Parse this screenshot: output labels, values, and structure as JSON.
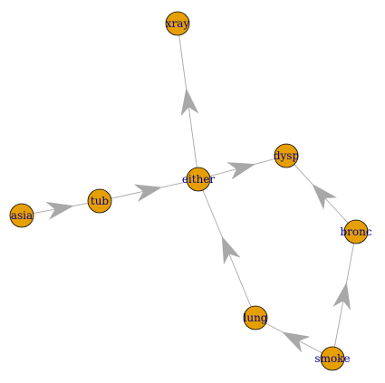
{
  "graph": {
    "colors": {
      "node_fill": "#E69F00",
      "node_border": "#000000",
      "edge": "#A8A8A8",
      "label": "#00008B"
    },
    "nodes": [
      {
        "id": "xray",
        "label": "xray"
      },
      {
        "id": "dysp",
        "label": "dysp"
      },
      {
        "id": "either",
        "label": "either"
      },
      {
        "id": "tub",
        "label": "tub"
      },
      {
        "id": "asia",
        "label": "asia"
      },
      {
        "id": "bronc",
        "label": "bronc"
      },
      {
        "id": "lung",
        "label": "lung"
      },
      {
        "id": "smoke",
        "label": "smoke"
      }
    ],
    "edges": [
      {
        "from": "asia",
        "to": "tub"
      },
      {
        "from": "tub",
        "to": "either"
      },
      {
        "from": "lung",
        "to": "either"
      },
      {
        "from": "either",
        "to": "xray"
      },
      {
        "from": "either",
        "to": "dysp"
      },
      {
        "from": "bronc",
        "to": "dysp"
      },
      {
        "from": "smoke",
        "to": "lung"
      },
      {
        "from": "smoke",
        "to": "bronc"
      }
    ]
  }
}
